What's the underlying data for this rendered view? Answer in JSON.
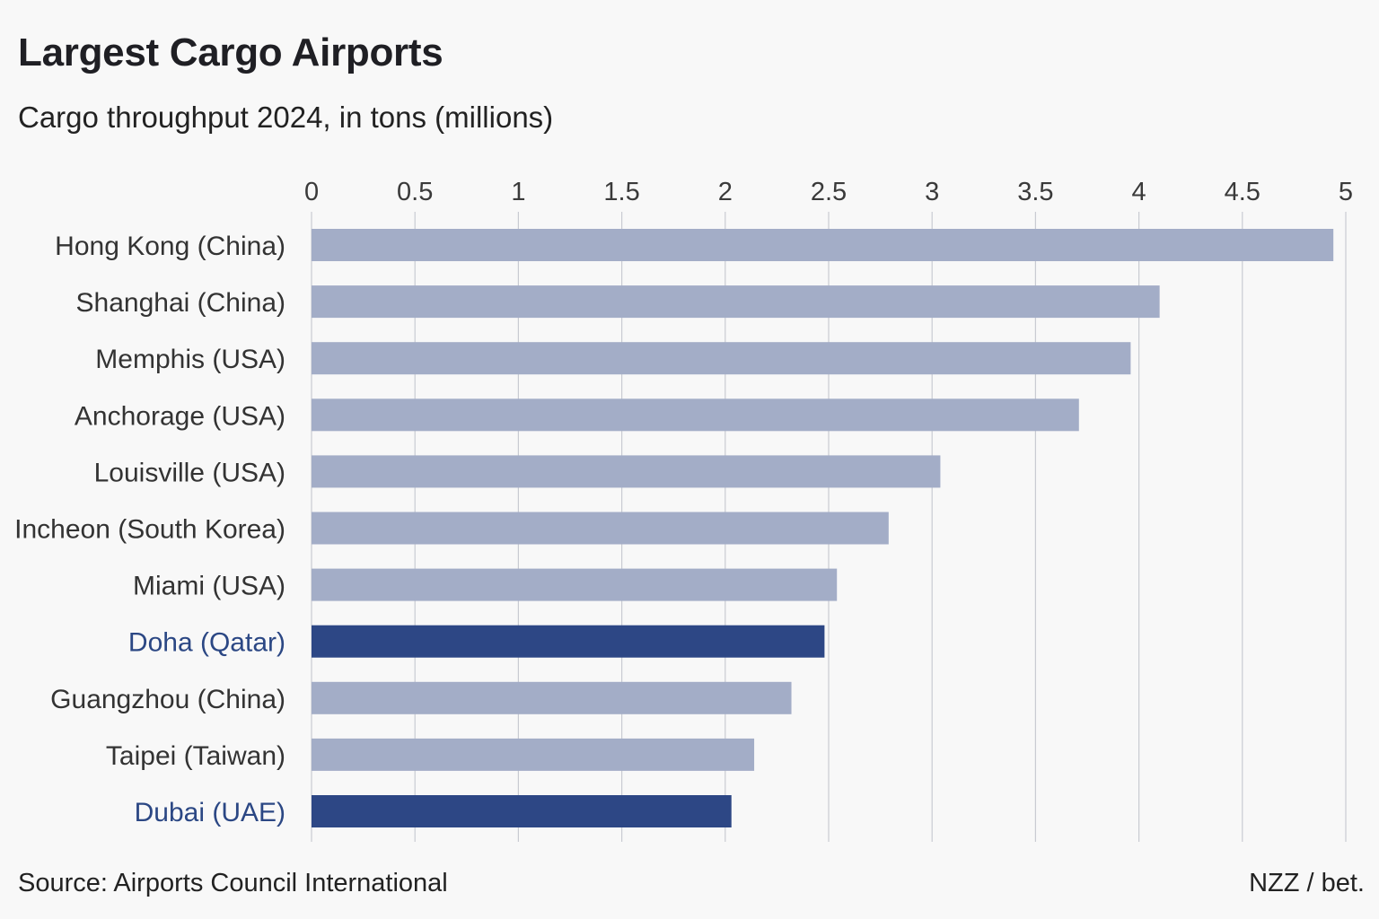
{
  "chart_data": {
    "type": "bar",
    "orientation": "horizontal",
    "title": "Largest Cargo Airports",
    "subtitle": "Cargo throughput 2024, in tons (millions)",
    "categories": [
      "Hong Kong (China)",
      "Shanghai (China)",
      "Memphis (USA)",
      "Anchorage (USA)",
      "Louisville (USA)",
      "Incheon (South Korea)",
      "Miami (USA)",
      "Doha (Qatar)",
      "Guangzhou (China)",
      "Taipei (Taiwan)",
      "Dubai (UAE)"
    ],
    "values": [
      4.94,
      4.1,
      3.96,
      3.71,
      3.04,
      2.79,
      2.54,
      2.48,
      2.32,
      2.14,
      2.03
    ],
    "highlighted": [
      "Doha (Qatar)",
      "Dubai (UAE)"
    ],
    "xlim": [
      0,
      5
    ],
    "xticks": [
      "0",
      "0.5",
      "1",
      "1.5",
      "2",
      "2.5",
      "3",
      "3.5",
      "4",
      "4.5",
      "5"
    ],
    "xlabel": "",
    "ylabel": "",
    "grid": true,
    "colors": {
      "bar": "#a3adc7",
      "highlight": "#2d4785",
      "grid": "#c9cbd2",
      "highlight_label": "#2b4784"
    }
  },
  "footer": {
    "source": "Source: Airports Council International",
    "credit": "NZZ / bet."
  }
}
